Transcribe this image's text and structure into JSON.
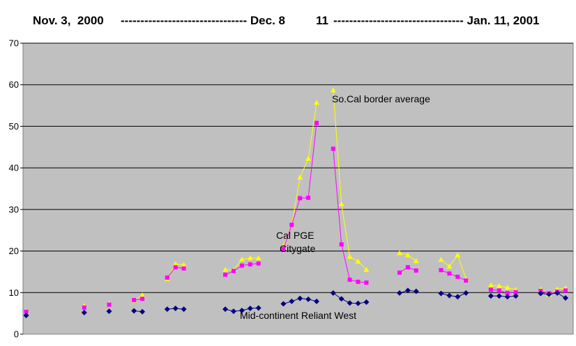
{
  "chart_data": {
    "type": "line",
    "title_parts": [
      "Nov. 3,  2000",
      "-------------------------------- Dec. 8",
      "11",
      "--------------------------------- Jan. 11, 2001"
    ],
    "ylim": [
      0,
      70
    ],
    "yticks": [
      0,
      10,
      20,
      30,
      40,
      50,
      60,
      70
    ],
    "grid": true,
    "background": "#C0C0C0",
    "annotations": [
      {
        "text": "So.Cal border average",
        "series": "So.Cal border average"
      },
      {
        "text": "Cal  PGE",
        "series": "Cal PGE Citygate"
      },
      {
        "text": "Citygate",
        "series": "Cal PGE Citygate"
      },
      {
        "text": "Mid-continent Reliant West",
        "series": "Mid-continent Reliant West"
      }
    ],
    "series": [
      {
        "name": "So.Cal border average",
        "color": "#FFFF00",
        "marker": "triangle",
        "segments": [
          {
            "x": [
              0
            ],
            "y": [
              5.6
            ]
          },
          {
            "x": [
              7
            ],
            "y": [
              6.8
            ]
          },
          {
            "x": [
              10
            ],
            "y": [
              7.3
            ]
          },
          {
            "x": [
              13,
              14
            ],
            "y": [
              8.1,
              9.4
            ]
          },
          {
            "x": [
              17,
              18,
              19
            ],
            "y": [
              13.3,
              16.9,
              16.7
            ]
          },
          {
            "x": [
              24,
              25,
              26,
              27,
              28
            ],
            "y": [
              15.5,
              15.4,
              18.0,
              18.3,
              18.3
            ]
          },
          {
            "x": [
              31,
              32,
              33,
              34,
              35
            ],
            "y": [
              21.1,
              26.3,
              37.7,
              42.2,
              55.7
            ]
          },
          {
            "x": [
              37,
              38,
              39,
              40,
              41
            ],
            "y": [
              58.7,
              31.3,
              18.6,
              17.5,
              15.5
            ]
          },
          {
            "x": [
              45,
              46,
              47
            ],
            "y": [
              19.5,
              19.0,
              17.6
            ]
          },
          {
            "x": [
              50,
              51,
              52,
              53
            ],
            "y": [
              17.9,
              16.3,
              19.0,
              13.3
            ]
          },
          {
            "x": [
              56,
              57,
              58,
              59
            ],
            "y": [
              11.8,
              11.6,
              11.2,
              10.7
            ]
          },
          {
            "x": [
              62,
              63,
              64,
              65
            ],
            "y": [
              10.8,
              9.5,
              10.8,
              11.1
            ]
          }
        ]
      },
      {
        "name": "Cal PGE Citygate",
        "color": "#FF00FF",
        "marker": "square",
        "segments": [
          {
            "x": [
              0
            ],
            "y": [
              5.4
            ]
          },
          {
            "x": [
              7
            ],
            "y": [
              6.4
            ]
          },
          {
            "x": [
              10
            ],
            "y": [
              7.1
            ]
          },
          {
            "x": [
              13,
              14
            ],
            "y": [
              8.2,
              8.5
            ]
          },
          {
            "x": [
              17,
              18,
              19
            ],
            "y": [
              13.6,
              16.1,
              15.8
            ]
          },
          {
            "x": [
              24,
              25,
              26,
              27,
              28
            ],
            "y": [
              14.3,
              15.2,
              16.5,
              16.8,
              17.0
            ]
          },
          {
            "x": [
              31,
              32,
              33,
              34,
              35
            ],
            "y": [
              20.5,
              26.3,
              32.7,
              32.8,
              50.8
            ]
          },
          {
            "x": [
              37,
              38,
              39,
              40,
              41
            ],
            "y": [
              44.6,
              21.6,
              13.1,
              12.6,
              12.4
            ]
          },
          {
            "x": [
              45,
              46,
              47
            ],
            "y": [
              14.8,
              16.1,
              15.3
            ]
          },
          {
            "x": [
              50,
              51,
              52,
              53
            ],
            "y": [
              15.4,
              14.6,
              13.8,
              12.9
            ]
          },
          {
            "x": [
              56,
              57,
              58,
              59
            ],
            "y": [
              10.7,
              10.5,
              9.9,
              10.1
            ]
          },
          {
            "x": [
              62,
              63,
              64,
              65
            ],
            "y": [
              10.4,
              9.8,
              10.2,
              10.5
            ]
          }
        ]
      },
      {
        "name": "Mid-continent Reliant West",
        "color": "#000080",
        "marker": "diamond",
        "segments": [
          {
            "x": [
              0
            ],
            "y": [
              4.5
            ]
          },
          {
            "x": [
              7
            ],
            "y": [
              5.2
            ]
          },
          {
            "x": [
              10
            ],
            "y": [
              5.5
            ]
          },
          {
            "x": [
              13,
              14
            ],
            "y": [
              5.6,
              5.4
            ]
          },
          {
            "x": [
              17,
              18,
              19
            ],
            "y": [
              6.0,
              6.2,
              6.0
            ]
          },
          {
            "x": [
              24,
              25,
              26,
              27,
              28
            ],
            "y": [
              6.0,
              5.5,
              5.7,
              6.2,
              6.3
            ]
          },
          {
            "x": [
              31,
              32,
              33,
              34,
              35
            ],
            "y": [
              7.3,
              7.9,
              8.6,
              8.4,
              7.9
            ]
          },
          {
            "x": [
              37,
              38,
              39,
              40,
              41
            ],
            "y": [
              9.9,
              8.5,
              7.5,
              7.4,
              7.7
            ]
          },
          {
            "x": [
              45,
              46,
              47
            ],
            "y": [
              9.9,
              10.5,
              10.3
            ]
          },
          {
            "x": [
              50,
              51,
              52,
              53
            ],
            "y": [
              9.8,
              9.3,
              9.0,
              9.9
            ]
          },
          {
            "x": [
              56,
              57,
              58,
              59
            ],
            "y": [
              9.2,
              9.2,
              9.0,
              9.2
            ]
          },
          {
            "x": [
              62,
              63,
              64,
              65
            ],
            "y": [
              9.8,
              9.6,
              9.9,
              8.7
            ]
          }
        ]
      }
    ]
  }
}
